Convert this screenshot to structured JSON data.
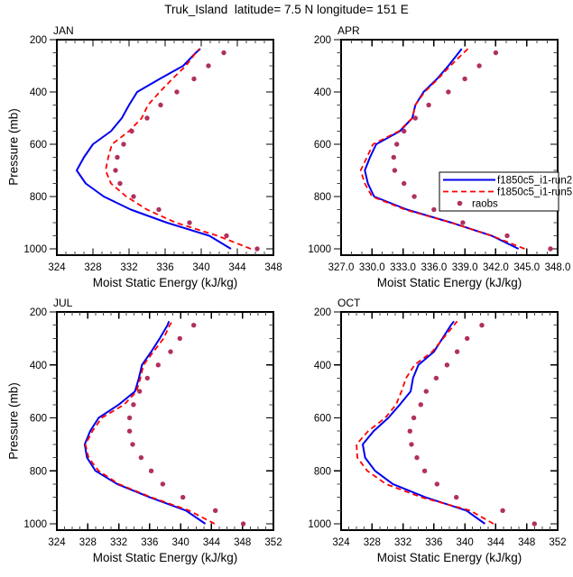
{
  "title": "Truk_Island  latitude= 7.5 N longitude= 151 E",
  "y_axis": {
    "label": "Pressure (mb)",
    "ticks": [
      200,
      400,
      600,
      800,
      1000
    ],
    "minor_step": 50,
    "min": 200,
    "max": 1023,
    "inverted": true
  },
  "x_axis_label": "Moist Static Energy (kJ/kg)",
  "colors": {
    "run2": "#0000EE",
    "run5": "#FF0000",
    "raobs": "#B03060",
    "frame": "#000000"
  },
  "legend": {
    "position": "inside-APR-panel",
    "entries": [
      {
        "label": "f1850c5_i1-run2",
        "style": "solid-line",
        "color": "#0000EE"
      },
      {
        "label": "f1850c5_i1-run5",
        "style": "dashed-line",
        "color": "#FF0000"
      },
      {
        "label": "raobs",
        "style": "dot",
        "color": "#B03060"
      }
    ]
  },
  "chart_data": [
    {
      "type": "line",
      "month": "JAN",
      "xlabel": "Moist Static Energy (kJ/kg)",
      "ylabel": "Pressure (mb)",
      "xlim": [
        324,
        348
      ],
      "xtick_step": 4,
      "xminor_step": 1,
      "tick_decimals": 0,
      "ylim": [
        200,
        1000
      ],
      "show_legend": false,
      "levels": [
        1000,
        950,
        900,
        850,
        800,
        750,
        700,
        650,
        600,
        550,
        500,
        450,
        400,
        350,
        300,
        250,
        235
      ],
      "series": [
        {
          "name": "f1850c5_i1-run2",
          "values": [
            343.3,
            340.9,
            336.2,
            332.2,
            329.2,
            327.2,
            326.2,
            327.0,
            328.0,
            330.0,
            331.2,
            332.0,
            332.9,
            335.4,
            338.0,
            339.4,
            339.9
          ]
        },
        {
          "name": "f1850c5_i1-run5",
          "values": [
            345.5,
            341.8,
            337.2,
            334.0,
            331.7,
            330.0,
            329.4,
            329.7,
            330.1,
            332.0,
            333.4,
            334.1,
            335.4,
            336.8,
            338.3,
            339.4,
            339.8
          ]
        }
      ],
      "dots": {
        "name": "raobs",
        "levels": [
          1000,
          950,
          900,
          850,
          800,
          750,
          700,
          650,
          600,
          550,
          500,
          450,
          400,
          350,
          300,
          250
        ],
        "values": [
          346.2,
          342.8,
          338.7,
          335.3,
          332.5,
          331.0,
          330.5,
          330.7,
          331.4,
          332.3,
          334.0,
          335.5,
          337.3,
          339.2,
          340.8,
          342.5
        ]
      }
    },
    {
      "type": "line",
      "month": "APR",
      "xlabel": "Moist Static Energy (kJ/kg)",
      "ylabel": "Pressure (mb)",
      "xlim": [
        327,
        348
      ],
      "xtick_step": 3,
      "xminor_step": 1,
      "tick_decimals": 1,
      "ylim": [
        200,
        1000
      ],
      "show_legend": true,
      "levels": [
        1000,
        950,
        900,
        850,
        800,
        750,
        700,
        650,
        600,
        550,
        500,
        450,
        400,
        350,
        300,
        250,
        235
      ],
      "series": [
        {
          "name": "f1850c5_i1-run2",
          "values": [
            344.2,
            341.6,
            337.7,
            333.4,
            330.2,
            329.6,
            329.3,
            329.8,
            330.4,
            332.7,
            333.9,
            334.2,
            335.0,
            336.3,
            337.4,
            338.4,
            338.7
          ]
        },
        {
          "name": "f1850c5_i1-run5",
          "values": [
            344.8,
            341.6,
            337.7,
            333.2,
            330.0,
            329.3,
            328.9,
            329.5,
            330.1,
            332.6,
            333.9,
            334.2,
            335.1,
            336.4,
            337.6,
            338.9,
            339.3
          ]
        }
      ],
      "dots": {
        "name": "raobs",
        "levels": [
          1000,
          950,
          900,
          850,
          800,
          750,
          700,
          650,
          600,
          550,
          500,
          450,
          400,
          350,
          300,
          250
        ],
        "values": [
          347.3,
          343.1,
          338.8,
          336.0,
          334.1,
          333.1,
          332.2,
          332.1,
          332.4,
          333.1,
          334.2,
          335.5,
          337.4,
          339.0,
          340.4,
          342.0
        ]
      }
    },
    {
      "type": "line",
      "month": "JUL",
      "xlabel": "Moist Static Energy (kJ/kg)",
      "ylabel": "Pressure (mb)",
      "xlim": [
        324,
        352
      ],
      "xtick_step": 4,
      "xminor_step": 1,
      "tick_decimals": 0,
      "ylim": [
        200,
        1000
      ],
      "show_legend": false,
      "levels": [
        1000,
        950,
        900,
        850,
        800,
        750,
        700,
        650,
        600,
        550,
        500,
        450,
        400,
        350,
        300,
        250,
        235
      ],
      "series": [
        {
          "name": "f1850c5_i1-run2",
          "values": [
            343.2,
            340.7,
            336.0,
            331.8,
            329.0,
            327.9,
            327.6,
            328.3,
            329.4,
            332.0,
            334.1,
            334.6,
            335.0,
            336.2,
            337.3,
            338.3,
            338.5
          ]
        },
        {
          "name": "f1850c5_i1-run5",
          "values": [
            344.4,
            341.1,
            336.2,
            332.0,
            329.4,
            328.1,
            327.7,
            328.6,
            329.8,
            332.7,
            334.3,
            334.8,
            335.2,
            336.5,
            337.8,
            338.6,
            338.9
          ]
        }
      ],
      "dots": {
        "name": "raobs",
        "levels": [
          1000,
          950,
          900,
          850,
          800,
          750,
          700,
          650,
          600,
          550,
          500,
          450,
          400,
          350,
          300,
          250
        ],
        "values": [
          348.1,
          344.5,
          340.3,
          337.7,
          336.2,
          334.9,
          333.8,
          333.4,
          333.4,
          333.9,
          334.7,
          335.7,
          337.1,
          338.7,
          339.9,
          341.7
        ]
      }
    },
    {
      "type": "line",
      "month": "OCT",
      "xlabel": "Moist Static Energy (kJ/kg)",
      "ylabel": "Pressure (mb)",
      "xlim": [
        324,
        352
      ],
      "xtick_step": 4,
      "xminor_step": 1,
      "tick_decimals": 0,
      "ylim": [
        200,
        1000
      ],
      "show_legend": false,
      "levels": [
        1000,
        950,
        900,
        850,
        800,
        750,
        700,
        650,
        600,
        550,
        500,
        450,
        400,
        350,
        300,
        250,
        235
      ],
      "series": [
        {
          "name": "f1850c5_i1-run2",
          "values": [
            342.6,
            340.2,
            334.9,
            330.7,
            328.4,
            327.1,
            326.8,
            328.2,
            330.1,
            331.6,
            333.0,
            333.3,
            334.0,
            336.0,
            337.1,
            338.2,
            338.6
          ]
        },
        {
          "name": "f1850c5_i1-run5",
          "values": [
            343.7,
            340.7,
            334.4,
            329.8,
            327.4,
            326.1,
            326.0,
            327.5,
            329.7,
            331.1,
            331.8,
            332.4,
            333.5,
            335.8,
            337.2,
            338.6,
            339.0
          ]
        }
      ],
      "dots": {
        "name": "raobs",
        "levels": [
          1000,
          950,
          900,
          850,
          800,
          750,
          700,
          650,
          600,
          550,
          500,
          450,
          400,
          350,
          300,
          250
        ],
        "values": [
          349.0,
          344.9,
          338.9,
          336.4,
          334.8,
          333.8,
          333.1,
          332.9,
          333.4,
          334.3,
          335.0,
          336.3,
          337.7,
          339.0,
          340.3,
          342.2
        ]
      }
    }
  ]
}
